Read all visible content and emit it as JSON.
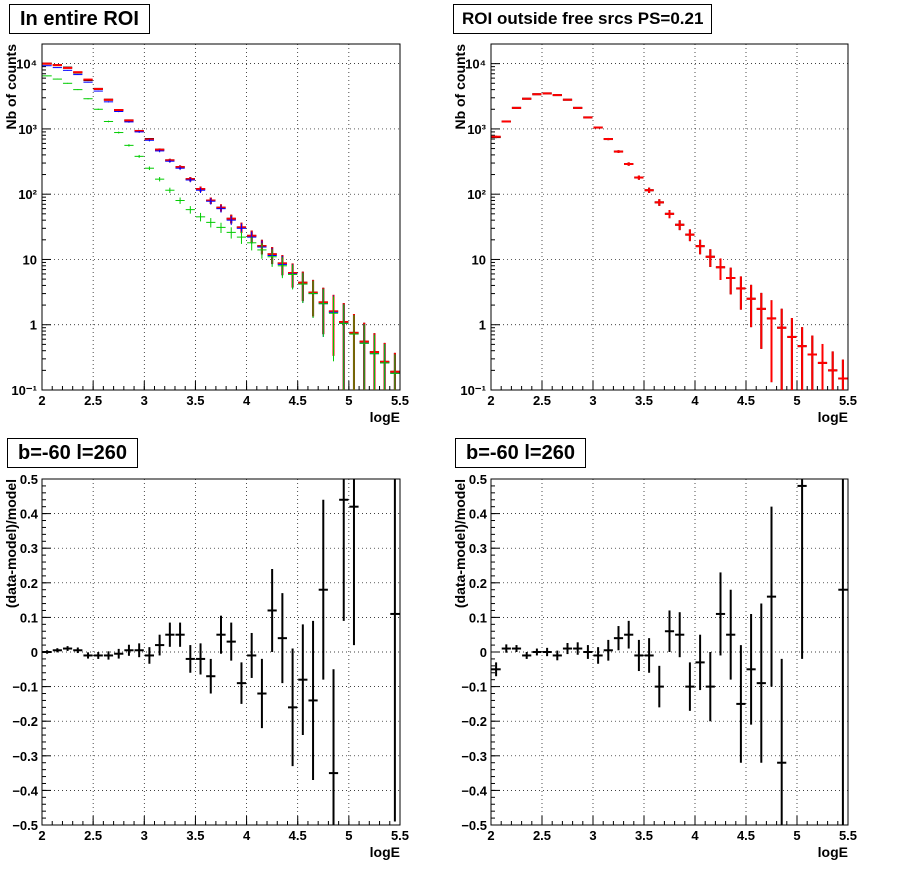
{
  "colors": {
    "data": "#000000",
    "model": "#ff0000",
    "blue": "#0000ff",
    "green": "#00cc00",
    "grid": "#000000"
  },
  "chart_data": [
    {
      "type": "scatter",
      "title": "In entire ROI",
      "xlabel": "logE",
      "ylabel": "Nb of counts",
      "log_y": true,
      "xlim": [
        2,
        5.5
      ],
      "ylim": [
        0.1,
        20000
      ],
      "x_ticks": [
        "2",
        "2.5",
        "3",
        "3.5",
        "4",
        "4.5",
        "5",
        "5.5"
      ],
      "y_ticks": [
        "10⁻¹",
        "1",
        "10",
        "10²",
        "10³",
        "10⁴"
      ],
      "grid": true,
      "series": [
        {
          "key": "data",
          "color": "#000000",
          "x": [
            2.05,
            2.15,
            2.25,
            2.35,
            2.45,
            2.55,
            2.65,
            2.75,
            2.85,
            2.95,
            3.05,
            3.15,
            3.25,
            3.35,
            3.45,
            3.55,
            3.65,
            3.75,
            3.85,
            3.95,
            4.05,
            4.15,
            4.25,
            4.35,
            4.45,
            4.55,
            4.65,
            4.75,
            4.85,
            4.95,
            5.05,
            5.15,
            5.25,
            5.35,
            5.45
          ],
          "y": [
            10000,
            9500,
            8700,
            7300,
            5600,
            4100,
            2800,
            1950,
            1350,
            930,
            700,
            480,
            330,
            260,
            170,
            120,
            80,
            62,
            42,
            31,
            23,
            16,
            12,
            8.7,
            6.2,
            4.4,
            3.1,
            2.2,
            1.6,
            1.1,
            0.75,
            0.55,
            0.38,
            0.27,
            0.19
          ]
        },
        {
          "key": "model",
          "color": "#ff0000",
          "x": [
            2.05,
            2.15,
            2.25,
            2.35,
            2.45,
            2.55,
            2.65,
            2.75,
            2.85,
            2.95,
            3.05,
            3.15,
            3.25,
            3.35,
            3.45,
            3.55,
            3.65,
            3.75,
            3.85,
            3.95,
            4.05,
            4.15,
            4.25,
            4.35,
            4.45,
            4.55,
            4.65,
            4.75,
            4.85,
            4.95,
            5.05,
            5.15,
            5.25,
            5.35,
            5.45
          ],
          "y": [
            10000,
            9500,
            8600,
            7400,
            5700,
            4100,
            2800,
            1950,
            1350,
            930,
            690,
            480,
            330,
            260,
            170,
            120,
            80,
            62,
            42,
            31,
            23,
            16,
            12,
            8.7,
            6.2,
            4.4,
            3.1,
            2.2,
            1.6,
            1.1,
            0.75,
            0.55,
            0.38,
            0.27,
            0.19
          ]
        },
        {
          "key": "blue",
          "color": "#0000ff",
          "x": [
            2.05,
            2.15,
            2.25,
            2.35,
            2.45,
            2.55,
            2.65,
            2.75,
            2.85,
            2.95,
            3.05,
            3.15,
            3.25,
            3.35,
            3.45,
            3.55,
            3.65,
            3.75,
            3.85,
            3.95,
            4.05,
            4.15,
            4.25,
            4.35,
            4.45,
            4.55,
            4.65,
            4.75,
            4.85,
            4.95,
            5.05,
            5.15,
            5.25,
            5.35,
            5.45
          ],
          "y": [
            9300,
            8700,
            7900,
            6800,
            5200,
            3800,
            2600,
            1850,
            1280,
            900,
            670,
            460,
            320,
            250,
            165,
            115,
            78,
            60,
            40,
            30,
            22,
            15.5,
            11.5,
            8.4,
            6.0,
            4.2,
            3.0,
            2.1,
            1.55,
            1.05,
            0.72,
            0.52,
            0.36,
            0.26,
            0.18
          ]
        },
        {
          "key": "green",
          "color": "#00cc00",
          "x": [
            2.05,
            2.15,
            2.25,
            2.35,
            2.45,
            2.55,
            2.65,
            2.75,
            2.85,
            2.95,
            3.05,
            3.15,
            3.25,
            3.35,
            3.45,
            3.55,
            3.65,
            3.75,
            3.85,
            3.95,
            4.05,
            4.15,
            4.25,
            4.35,
            4.45,
            4.55,
            4.65,
            4.75,
            4.85,
            4.95,
            5.05,
            5.15,
            5.25,
            5.35,
            5.45
          ],
          "y": [
            6500,
            5800,
            5000,
            4000,
            2900,
            2000,
            1300,
            880,
            560,
            380,
            250,
            170,
            115,
            80,
            58,
            45,
            37,
            31,
            26,
            22,
            18,
            14,
            11,
            8.0,
            5.9,
            4.2,
            3.0,
            2.1,
            1.5,
            1.05,
            0.72,
            0.52,
            0.36,
            0.26,
            0.18
          ]
        }
      ]
    },
    {
      "type": "scatter",
      "title": "ROI outside free srcs PS=0.21",
      "xlabel": "logE",
      "ylabel": "Nb of counts",
      "log_y": true,
      "xlim": [
        2,
        5.5
      ],
      "ylim": [
        0.1,
        20000
      ],
      "x_ticks": [
        "2",
        "2.5",
        "3",
        "3.5",
        "4",
        "4.5",
        "5",
        "5.5"
      ],
      "y_ticks": [
        "10⁻¹",
        "1",
        "10",
        "10²",
        "10³",
        "10⁴"
      ],
      "grid": true,
      "series": [
        {
          "key": "data",
          "color": "#000000",
          "x": [
            2.05,
            2.15,
            2.25,
            2.35,
            2.45,
            2.55,
            2.65,
            2.75,
            2.85,
            2.95,
            3.05,
            3.15,
            3.25,
            3.35,
            3.45,
            3.55,
            3.65,
            3.75,
            3.85,
            3.95,
            4.05,
            4.15,
            4.25,
            4.35,
            4.45,
            4.55,
            4.65,
            4.75,
            4.85,
            4.95,
            5.05,
            5.15,
            5.25,
            5.35,
            5.45
          ],
          "y": [
            750,
            1300,
            2100,
            2900,
            3400,
            3500,
            3300,
            2800,
            2100,
            1500,
            1050,
            700,
            450,
            290,
            180,
            115,
            75,
            50,
            34,
            24,
            16,
            11,
            7.6,
            5.2,
            3.6,
            2.5,
            1.75,
            1.25,
            0.9,
            0.65,
            0.47,
            0.35,
            0.26,
            0.2,
            0.15
          ]
        },
        {
          "key": "model",
          "color": "#ff0000",
          "x": [
            2.05,
            2.15,
            2.25,
            2.35,
            2.45,
            2.55,
            2.65,
            2.75,
            2.85,
            2.95,
            3.05,
            3.15,
            3.25,
            3.35,
            3.45,
            3.55,
            3.65,
            3.75,
            3.85,
            3.95,
            4.05,
            4.15,
            4.25,
            4.35,
            4.45,
            4.55,
            4.65,
            4.75,
            4.85,
            4.95,
            5.05,
            5.15,
            5.25,
            5.35,
            5.45
          ],
          "y": [
            760,
            1300,
            2100,
            2900,
            3400,
            3500,
            3300,
            2800,
            2100,
            1500,
            1050,
            700,
            450,
            290,
            180,
            115,
            75,
            50,
            34,
            24,
            16,
            11,
            7.6,
            5.2,
            3.6,
            2.5,
            1.75,
            1.25,
            0.9,
            0.65,
            0.47,
            0.35,
            0.26,
            0.2,
            0.15
          ]
        }
      ]
    },
    {
      "type": "scatter",
      "title": "b=-60 l=260",
      "xlabel": "logE",
      "ylabel": "(data-model)/model",
      "log_y": false,
      "xlim": [
        2,
        5.5
      ],
      "ylim": [
        -0.5,
        0.5
      ],
      "x_ticks": [
        "2",
        "2.5",
        "3",
        "3.5",
        "4",
        "4.5",
        "5",
        "5.5"
      ],
      "y_ticks": [
        "−0.5",
        "−0.4",
        "−0.3",
        "−0.2",
        "−0.1",
        "0",
        "0.1",
        "0.2",
        "0.3",
        "0.4",
        "0.5"
      ],
      "grid": true,
      "series": [
        {
          "key": "residual",
          "color": "#000000",
          "x": [
            2.05,
            2.15,
            2.25,
            2.35,
            2.45,
            2.55,
            2.65,
            2.75,
            2.85,
            2.95,
            3.05,
            3.15,
            3.25,
            3.35,
            3.45,
            3.55,
            3.65,
            3.75,
            3.85,
            3.95,
            4.05,
            4.15,
            4.25,
            4.35,
            4.45,
            4.55,
            4.65,
            4.75,
            4.85,
            4.95,
            5.05,
            5.15,
            5.25,
            5.35,
            5.45
          ],
          "y": [
            0.0,
            0.005,
            0.01,
            0.005,
            -0.01,
            -0.01,
            -0.01,
            -0.005,
            0.005,
            0.005,
            -0.01,
            0.02,
            0.05,
            0.05,
            -0.02,
            -0.02,
            -0.07,
            0.05,
            0.03,
            -0.09,
            -0.01,
            -0.12,
            0.12,
            0.04,
            -0.16,
            -0.08,
            -0.14,
            0.18,
            -0.35,
            0.44,
            0.42,
            0.0,
            0.0,
            0.0,
            0.11
          ],
          "err": [
            0.005,
            0.006,
            0.007,
            0.008,
            0.009,
            0.01,
            0.012,
            0.014,
            0.016,
            0.02,
            0.024,
            0.03,
            0.035,
            0.035,
            0.04,
            0.045,
            0.05,
            0.055,
            0.055,
            0.06,
            0.065,
            0.1,
            0.12,
            0.13,
            0.17,
            0.16,
            0.23,
            0.26,
            0.3,
            0.35,
            0.4,
            0.0,
            0.0,
            0.0,
            0.6
          ],
          "show": [
            true,
            true,
            true,
            true,
            true,
            true,
            true,
            true,
            true,
            true,
            true,
            true,
            true,
            true,
            true,
            true,
            true,
            true,
            true,
            true,
            true,
            true,
            true,
            true,
            true,
            true,
            true,
            true,
            true,
            true,
            true,
            false,
            false,
            false,
            true
          ]
        }
      ]
    },
    {
      "type": "scatter",
      "title": "b=-60 l=260",
      "xlabel": "logE",
      "ylabel": "(data-model)/model",
      "log_y": false,
      "xlim": [
        2,
        5.5
      ],
      "ylim": [
        -0.5,
        0.5
      ],
      "x_ticks": [
        "2",
        "2.5",
        "3",
        "3.5",
        "4",
        "4.5",
        "5",
        "5.5"
      ],
      "y_ticks": [
        "−0.5",
        "−0.4",
        "−0.3",
        "−0.2",
        "−0.1",
        "0",
        "0.1",
        "0.2",
        "0.3",
        "0.4",
        "0.5"
      ],
      "grid": true,
      "series": [
        {
          "key": "residual",
          "color": "#000000",
          "x": [
            2.05,
            2.15,
            2.25,
            2.35,
            2.45,
            2.55,
            2.65,
            2.75,
            2.85,
            2.95,
            3.05,
            3.15,
            3.25,
            3.35,
            3.45,
            3.55,
            3.65,
            3.75,
            3.85,
            3.95,
            4.05,
            4.15,
            4.25,
            4.35,
            4.45,
            4.55,
            4.65,
            4.75,
            4.85,
            4.95,
            5.05,
            5.15,
            5.25,
            5.35,
            5.45
          ],
          "y": [
            -0.05,
            0.01,
            0.01,
            -0.01,
            0.0,
            0.0,
            -0.01,
            0.01,
            0.01,
            0.0,
            -0.01,
            0.005,
            0.04,
            0.05,
            -0.01,
            -0.01,
            -0.1,
            0.06,
            0.05,
            -0.1,
            -0.03,
            -0.1,
            0.11,
            0.05,
            -0.15,
            -0.05,
            -0.09,
            0.16,
            -0.32,
            0.0,
            0.48,
            0.0,
            0.0,
            0.0,
            0.18
          ],
          "err": [
            0.02,
            0.012,
            0.01,
            0.01,
            0.01,
            0.012,
            0.014,
            0.016,
            0.018,
            0.02,
            0.024,
            0.03,
            0.035,
            0.04,
            0.045,
            0.05,
            0.06,
            0.06,
            0.065,
            0.07,
            0.08,
            0.1,
            0.12,
            0.13,
            0.17,
            0.16,
            0.23,
            0.26,
            0.3,
            0.0,
            0.5,
            0.0,
            0.0,
            0.0,
            0.7
          ],
          "show": [
            true,
            true,
            true,
            true,
            true,
            true,
            true,
            true,
            true,
            true,
            true,
            true,
            true,
            true,
            true,
            true,
            true,
            true,
            true,
            true,
            true,
            true,
            true,
            true,
            true,
            true,
            true,
            true,
            true,
            false,
            true,
            false,
            false,
            false,
            true
          ]
        }
      ]
    }
  ]
}
